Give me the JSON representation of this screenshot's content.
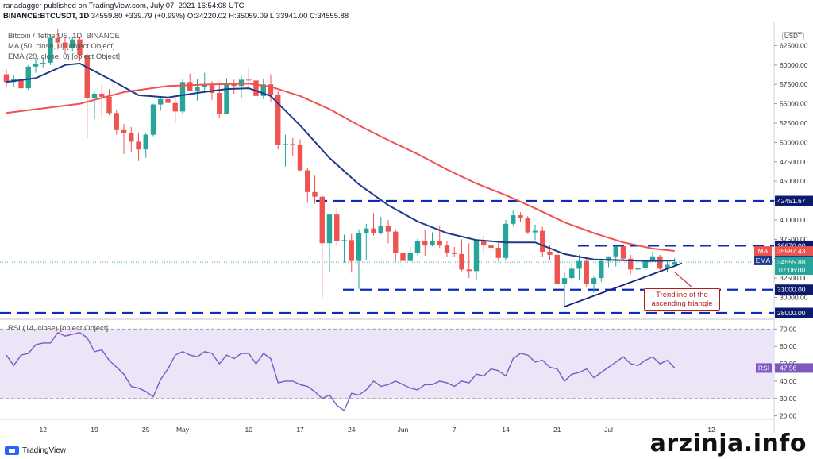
{
  "header": {
    "published_line": "ranadagger published on TradingView.com, July 07, 2021 16:54:08 UTC",
    "symbol": "BINANCE:BTCUSDT, 1D",
    "last": "34559.80",
    "change": "+339.79 (+0.99%)",
    "ohlc": {
      "o": "O:34220.02",
      "h": "H:35059.09",
      "l": "L:33941.00",
      "c": "C:34555.88"
    }
  },
  "legend": {
    "title": "Bitcoin / TetherUS, 1D, BINANCE",
    "ma": "MA (50, close, 0) [object Object]",
    "ema": "EMA (20, close, 0) [object Object]",
    "rsi": "RSI (14, close) [object Object]"
  },
  "currency_badge": "USDT",
  "annotation": "Trendline of the ascending triangle",
  "footer": {
    "brand": "TradingView",
    "watermark": "arzinja.info"
  },
  "colors": {
    "up": "#26a69a",
    "down": "#ef5350",
    "ma": "#ef5350",
    "ema": "#1e3a8a",
    "level": "#0d2db3",
    "rsi": "#7e57c2",
    "rsi_band": "#ece4f7"
  },
  "chart_data": {
    "type": "candlestick",
    "price_axis": {
      "ylim": [
        28000,
        64700
      ],
      "ticks": [
        "62500.00",
        "60000.00",
        "57500.00",
        "55000.00",
        "52500.00",
        "50000.00",
        "47500.00",
        "45000.00",
        "42500.00",
        "40000.00",
        "37500.00",
        "35000.00",
        "32500.00",
        "30000.00"
      ],
      "tick_values": [
        62500,
        60000,
        57500,
        55000,
        52500,
        50000,
        47500,
        45000,
        42500,
        40000,
        37500,
        35000,
        32500,
        30000
      ]
    },
    "x_axis": {
      "labels": [
        "12",
        "19",
        "25",
        "May",
        "10",
        "17",
        "24",
        "Jun",
        "7",
        "14",
        "21",
        "Jul",
        "12"
      ],
      "label_index": [
        5,
        12,
        19,
        24,
        33,
        40,
        47,
        54,
        61,
        68,
        75,
        82,
        96
      ]
    },
    "horizontal_levels": [
      {
        "value": 42451.67,
        "label": "42451.67"
      },
      {
        "value": 36670.0,
        "label": "36670.00"
      },
      {
        "value": 31000.0,
        "label": "31000.00"
      },
      {
        "value": 28000.0,
        "label": "28000.00"
      }
    ],
    "price_tags": [
      {
        "name": "MA",
        "value": 35987.43,
        "label": "35987.43"
      },
      {
        "name": "EMA",
        "value": 34772.24,
        "label": "34772.24"
      },
      {
        "name": "last",
        "value": 34555.88,
        "label": "34555.88",
        "countdown": "07:06:00"
      }
    ],
    "candles_ohlc": [
      [
        58800,
        59400,
        57200,
        57800
      ],
      [
        57800,
        58700,
        57200,
        58200
      ],
      [
        58200,
        58800,
        56300,
        57000
      ],
      [
        57000,
        60000,
        56800,
        59800
      ],
      [
        59800,
        60800,
        59000,
        60200
      ],
      [
        60200,
        61000,
        59700,
        60300
      ],
      [
        60300,
        64000,
        60000,
        63500
      ],
      [
        63500,
        64700,
        62000,
        62900
      ],
      [
        62900,
        63600,
        61500,
        62200
      ],
      [
        62200,
        63700,
        61800,
        63300
      ],
      [
        63300,
        63700,
        60500,
        61300
      ],
      [
        61300,
        61500,
        50500,
        55700
      ],
      [
        55700,
        56500,
        53000,
        56300
      ],
      [
        56300,
        57500,
        53300,
        55900
      ],
      [
        55900,
        56900,
        53500,
        53800
      ],
      [
        53800,
        54200,
        51000,
        51600
      ],
      [
        51600,
        52400,
        48500,
        51200
      ],
      [
        51200,
        52000,
        48800,
        50100
      ],
      [
        50100,
        51300,
        47600,
        49100
      ],
      [
        49100,
        51200,
        48000,
        51000
      ],
      [
        51000,
        55000,
        50800,
        54900
      ],
      [
        54900,
        56000,
        54100,
        55600
      ],
      [
        55600,
        55800,
        53000,
        55100
      ],
      [
        55100,
        55800,
        52500,
        54000
      ],
      [
        54000,
        58200,
        53700,
        57800
      ],
      [
        57800,
        58900,
        56600,
        56600
      ],
      [
        56600,
        58200,
        55400,
        57200
      ],
      [
        57200,
        59000,
        56400,
        57400
      ],
      [
        57400,
        57900,
        55500,
        56400
      ],
      [
        56400,
        57600,
        53100,
        53700
      ],
      [
        53700,
        58300,
        53700,
        57500
      ],
      [
        57500,
        58100,
        56300,
        57300
      ],
      [
        57300,
        58600,
        55700,
        58100
      ],
      [
        58100,
        59500,
        56900,
        58000
      ],
      [
        58000,
        59500,
        55200,
        56000
      ],
      [
        56000,
        58200,
        55600,
        57500
      ],
      [
        57500,
        58800,
        55200,
        56200
      ],
      [
        56200,
        56600,
        49100,
        49700
      ],
      [
        49700,
        51000,
        46900,
        49800
      ],
      [
        49800,
        50600,
        48200,
        49700
      ],
      [
        49700,
        50400,
        46300,
        46400
      ],
      [
        46400,
        46700,
        42200,
        43600
      ],
      [
        43600,
        45700,
        42100,
        43000
      ],
      [
        43000,
        43300,
        30000,
        37000
      ],
      [
        37000,
        38000,
        33300,
        40700
      ],
      [
        40700,
        41500,
        36600,
        37300
      ],
      [
        37300,
        38100,
        34500,
        37400
      ],
      [
        37400,
        38200,
        33200,
        34700
      ],
      [
        34700,
        38800,
        31100,
        38300
      ],
      [
        38300,
        39500,
        34800,
        38900
      ],
      [
        38900,
        40900,
        38000,
        38300
      ],
      [
        38300,
        40400,
        38100,
        39200
      ],
      [
        39200,
        40000,
        37000,
        38500
      ],
      [
        38500,
        38800,
        34600,
        35700
      ],
      [
        35700,
        36700,
        34700,
        34700
      ],
      [
        34700,
        36500,
        34500,
        35700
      ],
      [
        35700,
        37600,
        35400,
        37300
      ],
      [
        37300,
        38700,
        35400,
        36700
      ],
      [
        36700,
        38400,
        36600,
        37300
      ],
      [
        37300,
        39300,
        36400,
        36700
      ],
      [
        36700,
        37300,
        35200,
        35800
      ],
      [
        35800,
        36500,
        35200,
        35600
      ],
      [
        35600,
        37500,
        33400,
        33600
      ],
      [
        33600,
        37000,
        32500,
        33400
      ],
      [
        33400,
        37300,
        32300,
        37400
      ],
      [
        37400,
        38000,
        35700,
        36700
      ],
      [
        36700,
        37000,
        35600,
        36400
      ],
      [
        36400,
        37200,
        34700,
        35100
      ],
      [
        35100,
        40000,
        34800,
        39500
      ],
      [
        39500,
        41200,
        39200,
        40600
      ],
      [
        40600,
        41000,
        39800,
        40300
      ],
      [
        40300,
        40500,
        38200,
        38400
      ],
      [
        38400,
        39400,
        37400,
        38600
      ],
      [
        38600,
        39100,
        35200,
        35900
      ],
      [
        35900,
        36800,
        34800,
        35500
      ],
      [
        35500,
        36000,
        31700,
        31700
      ],
      [
        31700,
        33200,
        28800,
        32500
      ],
      [
        32500,
        34800,
        32100,
        33700
      ],
      [
        33700,
        35500,
        32300,
        34700
      ],
      [
        34700,
        35200,
        31300,
        31700
      ],
      [
        31700,
        32700,
        30600,
        32500
      ],
      [
        32500,
        35000,
        32000,
        34700
      ],
      [
        34700,
        35300,
        33900,
        35300
      ],
      [
        35300,
        36600,
        34000,
        36600
      ],
      [
        36600,
        36600,
        34800,
        35000
      ],
      [
        35000,
        35500,
        33000,
        33600
      ],
      [
        33600,
        34600,
        32700,
        33800
      ],
      [
        33800,
        34500,
        33500,
        34700
      ],
      [
        34700,
        35900,
        34500,
        35300
      ],
      [
        35300,
        35500,
        33500,
        33700
      ],
      [
        33700,
        34700,
        33300,
        34200
      ],
      [
        34200,
        35100,
        33900,
        34560
      ]
    ],
    "ma_50": [
      [
        0,
        53800
      ],
      [
        10,
        55000
      ],
      [
        16,
        56500
      ],
      [
        22,
        57300
      ],
      [
        28,
        57500
      ],
      [
        33,
        57600
      ],
      [
        36,
        57200
      ],
      [
        40,
        56000
      ],
      [
        44,
        54300
      ],
      [
        48,
        52200
      ],
      [
        52,
        50300
      ],
      [
        56,
        48500
      ],
      [
        60,
        46500
      ],
      [
        64,
        44700
      ],
      [
        68,
        43200
      ],
      [
        72,
        41500
      ],
      [
        76,
        39700
      ],
      [
        80,
        38300
      ],
      [
        84,
        37100
      ],
      [
        88,
        36300
      ],
      [
        91,
        36000
      ]
    ],
    "ema_20": [
      [
        0,
        57800
      ],
      [
        4,
        58300
      ],
      [
        8,
        60000
      ],
      [
        10,
        60200
      ],
      [
        14,
        58200
      ],
      [
        18,
        56100
      ],
      [
        22,
        55800
      ],
      [
        26,
        56400
      ],
      [
        30,
        56900
      ],
      [
        33,
        57000
      ],
      [
        36,
        56000
      ],
      [
        40,
        52200
      ],
      [
        44,
        48000
      ],
      [
        48,
        44600
      ],
      [
        52,
        41900
      ],
      [
        56,
        39800
      ],
      [
        60,
        38300
      ],
      [
        64,
        37400
      ],
      [
        68,
        37100
      ],
      [
        72,
        37100
      ],
      [
        76,
        35600
      ],
      [
        80,
        34900
      ],
      [
        84,
        34800
      ],
      [
        88,
        34700
      ],
      [
        91,
        34770
      ]
    ],
    "trendline": {
      "from": [
        76,
        28800
      ],
      "to": [
        92,
        34400
      ]
    },
    "rsi": {
      "ylim": [
        18,
        72
      ],
      "ticks": [
        "70.00",
        "60.00",
        "50.00",
        "40.00",
        "30.00",
        "20.00"
      ],
      "tick_values": [
        70,
        60,
        50,
        40,
        30,
        20
      ],
      "band": [
        30,
        70
      ],
      "last": "47.56",
      "values": [
        55,
        49,
        55,
        56,
        61,
        62,
        62,
        68,
        66,
        67,
        68,
        65,
        57,
        58,
        52,
        48,
        44,
        37,
        36,
        34,
        31,
        41,
        47,
        55,
        57,
        55,
        54,
        57,
        56,
        50,
        55,
        53,
        56,
        56,
        50,
        56,
        53,
        39,
        40,
        40,
        38,
        37,
        34,
        30,
        32,
        26,
        23,
        33,
        32,
        35,
        40,
        37,
        38,
        40,
        38,
        36,
        35,
        38,
        38,
        40,
        39,
        37,
        40,
        39,
        44,
        43,
        47,
        46,
        43,
        53,
        56,
        55,
        51,
        52,
        48,
        47,
        40,
        44,
        45,
        47,
        42,
        45,
        48,
        51,
        54,
        50,
        49,
        52,
        54,
        50,
        52,
        47.56
      ]
    }
  }
}
